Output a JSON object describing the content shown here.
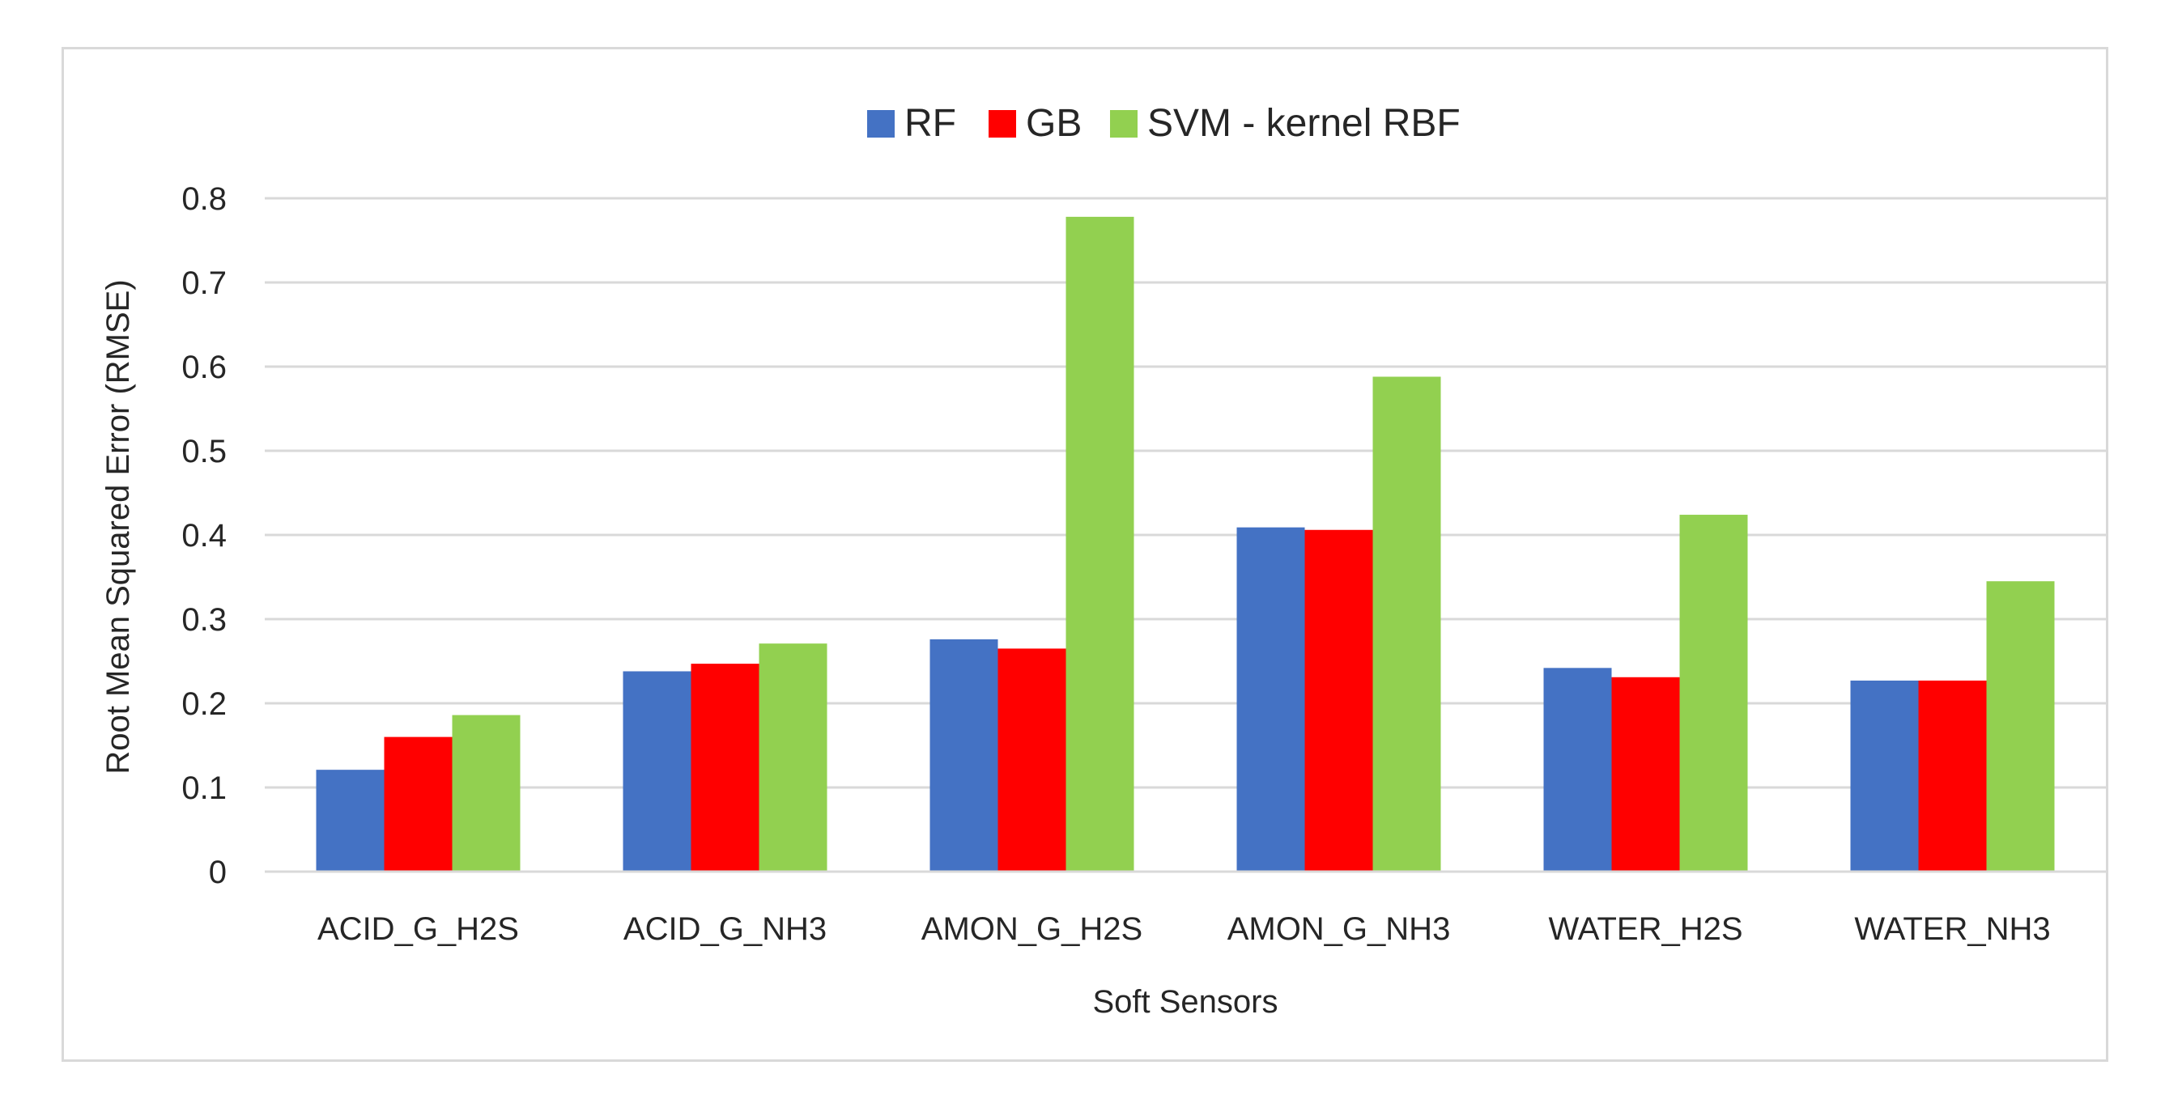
{
  "chart_data": {
    "type": "bar",
    "title": "",
    "xlabel": "Soft Sensors",
    "ylabel": "Root Mean Squared Error (RMSE)",
    "ylim": [
      0,
      0.8
    ],
    "yticks": [
      "0",
      "0.1",
      "0.2",
      "0.3",
      "0.4",
      "0.5",
      "0.6",
      "0.7",
      "0.8"
    ],
    "grid": true,
    "legend_position": "top-center",
    "categories": [
      "ACID_G_H2S",
      "ACID_G_NH3",
      "AMON_G_H2S",
      "AMON_G_NH3",
      "WATER_H2S",
      "WATER_NH3"
    ],
    "series": [
      {
        "name": "RF",
        "color": "#4472c4",
        "values": [
          0.121,
          0.238,
          0.276,
          0.409,
          0.242,
          0.227
        ]
      },
      {
        "name": "GB",
        "color": "#ff0000",
        "values": [
          0.16,
          0.247,
          0.265,
          0.406,
          0.231,
          0.227
        ]
      },
      {
        "name": "SVM - kernel RBF",
        "color": "#92d050",
        "values": [
          0.186,
          0.271,
          0.778,
          0.588,
          0.424,
          0.345
        ]
      }
    ]
  }
}
